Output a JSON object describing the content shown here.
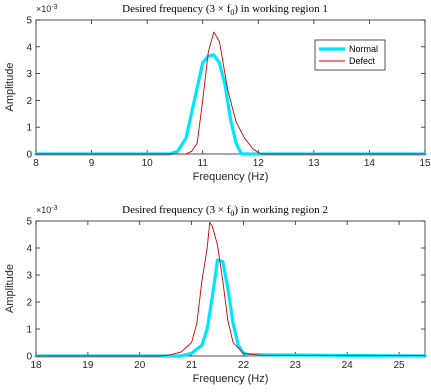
{
  "chart_data": [
    {
      "type": "line",
      "title_parts": [
        "Desired frequency (3 × f",
        "0",
        ") in working region 1"
      ],
      "xlabel": "Frequency (Hz)",
      "ylabel": "Amplitude",
      "y_exponent": [
        "×10",
        "-3"
      ],
      "xlim": [
        8,
        15
      ],
      "ylim": [
        0,
        5
      ],
      "xticks": [
        8,
        9,
        10,
        11,
        12,
        13,
        14,
        15
      ],
      "yticks": [
        0,
        1,
        2,
        3,
        4,
        5
      ],
      "grid": false,
      "legend": "top-right",
      "series": [
        {
          "name": "Normal",
          "color": "#00e5ff",
          "x": [
            8,
            10.4,
            10.55,
            10.7,
            10.85,
            11.0,
            11.1,
            11.2,
            11.3,
            11.4,
            11.5,
            11.6,
            11.7,
            15
          ],
          "y": [
            0,
            0,
            0.1,
            0.6,
            2.0,
            3.4,
            3.65,
            3.7,
            3.4,
            2.6,
            1.3,
            0.4,
            0,
            0
          ]
        },
        {
          "name": "Defect",
          "color": "#cc0000",
          "x": [
            8,
            10.7,
            10.8,
            10.9,
            11.0,
            11.1,
            11.2,
            11.3,
            11.45,
            11.6,
            11.75,
            11.9,
            12.0,
            12.05,
            15
          ],
          "y": [
            0,
            0,
            0.1,
            0.4,
            2.0,
            3.8,
            4.55,
            4.2,
            2.4,
            1.2,
            0.6,
            0.2,
            0.05,
            0,
            0
          ]
        }
      ]
    },
    {
      "type": "line",
      "title_parts": [
        "Desired frequency (3 × f",
        "0",
        ") in working region 2"
      ],
      "xlabel": "Frequency (Hz)",
      "ylabel": "Amplitude",
      "y_exponent": [
        "×10",
        "-3"
      ],
      "xlim": [
        18,
        25.5
      ],
      "ylim": [
        0,
        5
      ],
      "xticks": [
        18,
        19,
        20,
        21,
        22,
        23,
        24,
        25
      ],
      "yticks": [
        0,
        1,
        2,
        3,
        4,
        5
      ],
      "grid": false,
      "legend": "",
      "series": [
        {
          "name": "Normal",
          "color": "#00e5ff",
          "x": [
            18,
            20.8,
            21.0,
            21.2,
            21.3,
            21.4,
            21.5,
            21.6,
            21.7,
            21.8,
            21.9,
            22.0,
            22.1,
            25.5
          ],
          "y": [
            0,
            0,
            0.1,
            0.4,
            1.0,
            2.2,
            3.55,
            3.5,
            2.5,
            1.2,
            0.4,
            0.1,
            0.05,
            0
          ],
          "tail": 0.02
        },
        {
          "name": "Defect",
          "color": "#cc0000",
          "x": [
            18,
            20.4,
            20.6,
            20.8,
            21.0,
            21.1,
            21.2,
            21.3,
            21.35,
            21.4,
            21.5,
            21.6,
            21.7,
            21.8,
            22.0,
            22.2,
            22.4,
            25.5
          ],
          "y": [
            0,
            0,
            0.05,
            0.15,
            0.5,
            1.2,
            2.8,
            4.0,
            4.95,
            4.8,
            4.1,
            2.8,
            1.3,
            0.5,
            0.1,
            0.05,
            0.02,
            0.02
          ]
        }
      ]
    }
  ]
}
